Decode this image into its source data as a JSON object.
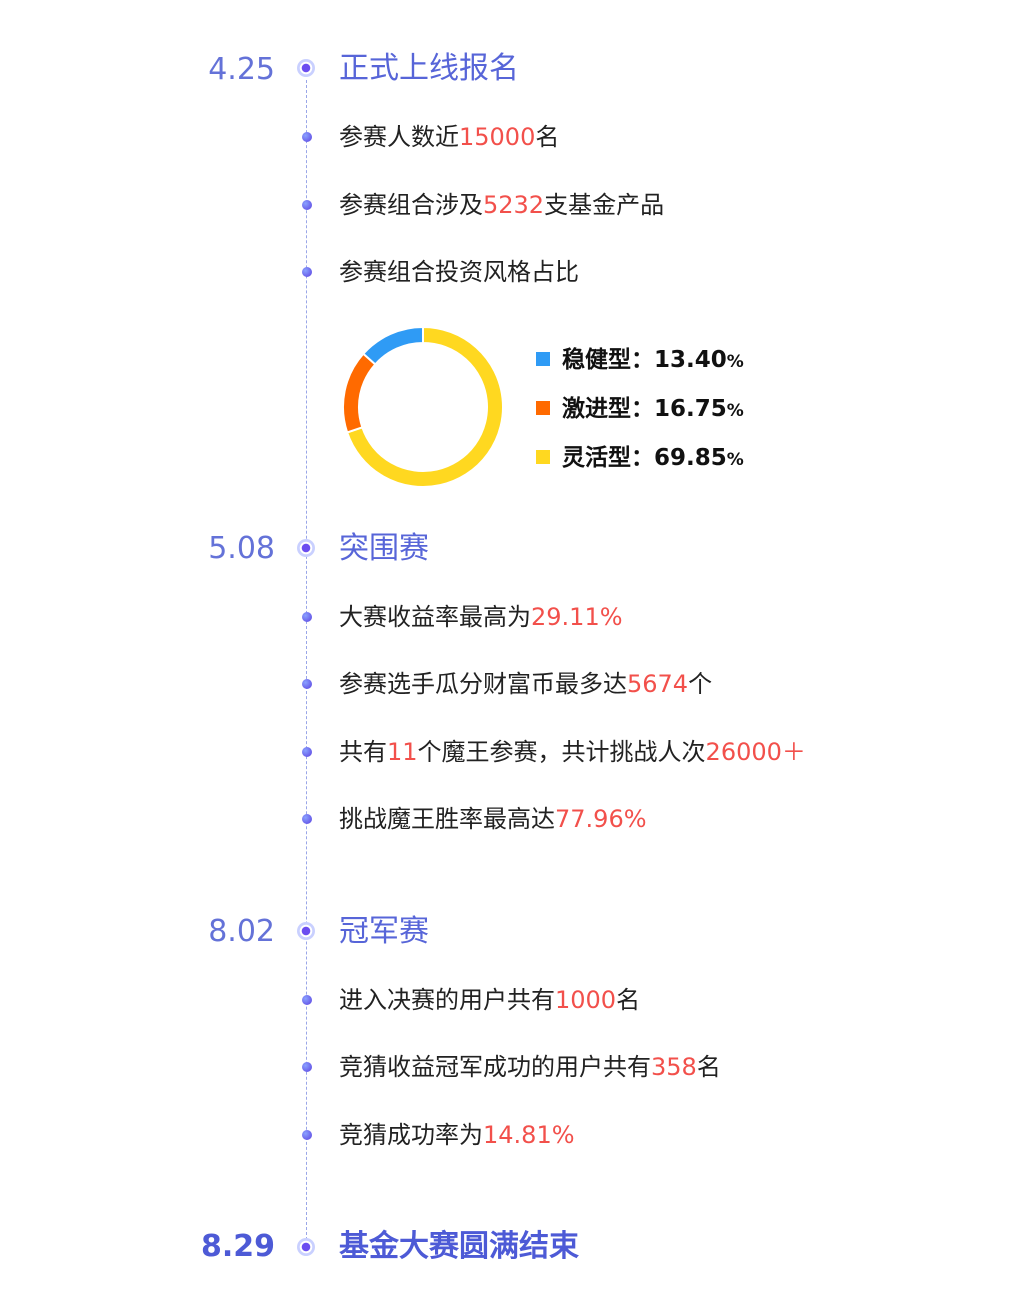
{
  "timeline": [
    {
      "date": "4.25",
      "title": "正式上线报名",
      "items": [
        {
          "pre": "参赛人数近",
          "hl": "15000",
          "post": "名"
        },
        {
          "pre": "参赛组合涉及",
          "hl": "5232",
          "post": "支基金产品"
        },
        {
          "pre": "参赛组合投资风格占比",
          "hl": "",
          "post": ""
        }
      ]
    },
    {
      "date": "5.08",
      "title": "突围赛",
      "items": [
        {
          "pre": "大赛收益率最高为",
          "hl": "29.11%",
          "post": ""
        },
        {
          "pre": "参赛选手瓜分财富币最多达",
          "hl": "5674",
          "post": "个"
        },
        {
          "pre": "共有",
          "hl": "11",
          "post": "个魔王参赛，共计挑战人次",
          "hl2": "26000＋"
        },
        {
          "pre": "挑战魔王胜率最高达",
          "hl": "77.96%",
          "post": ""
        }
      ]
    },
    {
      "date": "8.02",
      "title": "冠军赛",
      "items": [
        {
          "pre": "进入决赛的用户共有",
          "hl": "1000",
          "post": "名"
        },
        {
          "pre": "竞猜收益冠军成功的用户共有",
          "hl": "358",
          "post": "名"
        },
        {
          "pre": "竞猜成功率为",
          "hl": "14.81%",
          "post": ""
        }
      ]
    },
    {
      "date": "8.29",
      "title": "基金大赛圆满结束",
      "items": []
    }
  ],
  "chart_data": {
    "type": "pie",
    "donut": true,
    "legend_position": "right",
    "series": [
      {
        "name": "稳健型",
        "value": 13.4,
        "label": "13.40",
        "unit": "%",
        "color": "#2f9bf5"
      },
      {
        "name": "激进型",
        "value": 16.75,
        "label": "16.75",
        "unit": "%",
        "color": "#ff6a00"
      },
      {
        "name": "灵活型",
        "value": 69.85,
        "label": "69.85",
        "unit": "%",
        "color": "#ffd820"
      }
    ],
    "legend_separator": "："
  }
}
